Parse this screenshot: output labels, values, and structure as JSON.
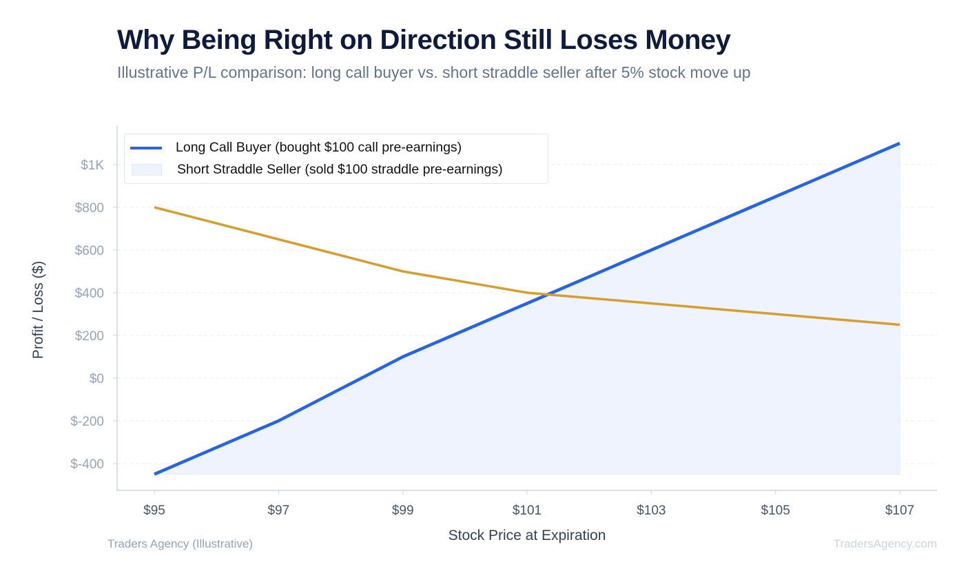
{
  "title": "Why Being Right on Direction Still Loses Money",
  "subtitle": "Illustrative P/L comparison: long call buyer vs. short straddle seller after 5% stock move up",
  "footer": {
    "left": "Traders Agency (Illustrative)",
    "right": "TradersAgency.com"
  },
  "chart_data": {
    "type": "line",
    "title": "Why Being Right on Direction Still Loses Money",
    "xlabel": "Stock Price at Expiration",
    "ylabel": "Profit / Loss ($)",
    "x": [
      95,
      97,
      99,
      101,
      103,
      105,
      107
    ],
    "x_tick_labels": [
      "$95",
      "$97",
      "$99",
      "$101",
      "$103",
      "$105",
      "$107"
    ],
    "y_ticks": [
      -400,
      -200,
      0,
      200,
      400,
      600,
      800,
      1000
    ],
    "y_tick_labels": [
      "$-400",
      "$-200",
      "$0",
      "$200",
      "$400",
      "$600",
      "$800",
      "$1K"
    ],
    "xlim": [
      94.4,
      107.6
    ],
    "ylim": [
      -500,
      1180
    ],
    "grid": true,
    "legend_position": "top-left",
    "series": [
      {
        "name": "Long Call Buyer (bought $100 call pre-earnings)",
        "values": [
          -450,
          -200,
          100,
          350,
          600,
          850,
          1100
        ],
        "color": "#2563eb",
        "legend_style": "line",
        "fill": "#eef3fd"
      },
      {
        "name": "Short Straddle Seller (sold $100 straddle pre-earnings)",
        "values": [
          800,
          650,
          500,
          400,
          350,
          300,
          250
        ],
        "color": "#d69e2e",
        "legend_style": "fill-box",
        "legend_color": "#eef3fd"
      }
    ]
  }
}
